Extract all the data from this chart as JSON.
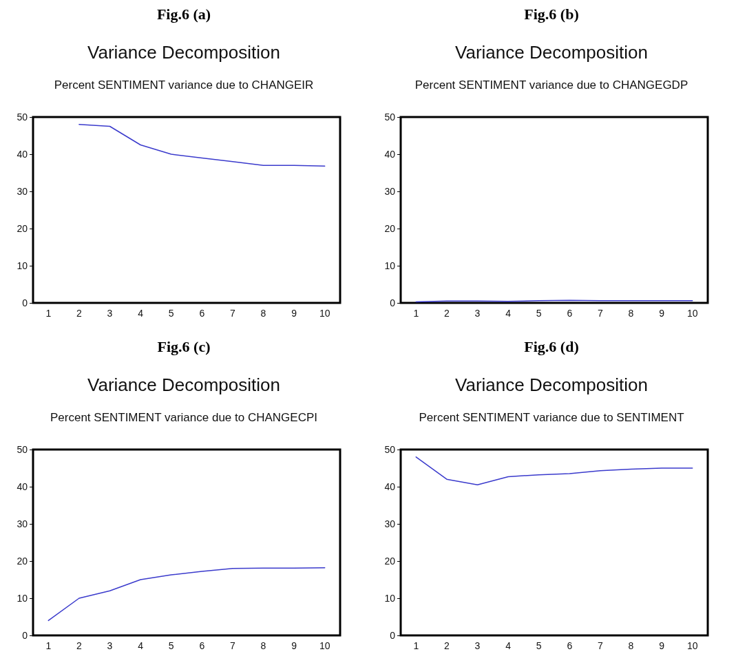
{
  "chart_data": [
    {
      "type": "line",
      "annotations": [
        "Fig.6 (a)"
      ],
      "title": "Variance Decomposition",
      "subtitle": "Percent SENTIMENT variance due to CHANGEIR",
      "categories": [
        "1",
        "2",
        "3",
        "4",
        "5",
        "6",
        "7",
        "8",
        "9",
        "10"
      ],
      "series": [
        {
          "color": "#3a3acc",
          "values": [
            null,
            48,
            47.5,
            42.5,
            40,
            39,
            38,
            37,
            37,
            36.8
          ]
        }
      ],
      "ylim": [
        0,
        50
      ],
      "yticks": [
        0,
        10,
        20,
        30,
        40,
        50
      ],
      "grid": false,
      "marker": "none",
      "line_style": "solid"
    },
    {
      "type": "line",
      "annotations": [
        "Fig.6 (b)"
      ],
      "title": "Variance Decomposition",
      "subtitle": "Percent SENTIMENT variance due to CHANGEGDP",
      "categories": [
        "1",
        "2",
        "3",
        "4",
        "5",
        "6",
        "7",
        "8",
        "9",
        "10"
      ],
      "series": [
        {
          "color": "#3a3acc",
          "values": [
            0.3,
            0.5,
            0.5,
            0.4,
            0.6,
            0.7,
            0.6,
            0.6,
            0.6,
            0.6
          ]
        }
      ],
      "ylim": [
        0,
        50
      ],
      "yticks": [
        0,
        10,
        20,
        30,
        40,
        50
      ],
      "grid": false,
      "marker": "none",
      "line_style": "solid"
    },
    {
      "type": "line",
      "annotations": [
        "Fig.6 (c)"
      ],
      "title": "Variance Decomposition",
      "subtitle": "Percent SENTIMENT variance due to CHANGECPI",
      "categories": [
        "1",
        "2",
        "3",
        "4",
        "5",
        "6",
        "7",
        "8",
        "9",
        "10"
      ],
      "series": [
        {
          "color": "#3a3acc",
          "values": [
            4,
            10,
            12,
            15,
            16.3,
            17.2,
            18,
            18.1,
            18.1,
            18.2
          ]
        }
      ],
      "ylim": [
        0,
        50
      ],
      "yticks": [
        0,
        10,
        20,
        30,
        40,
        50
      ],
      "grid": false,
      "marker": "none",
      "line_style": "solid"
    },
    {
      "type": "line",
      "annotations": [
        "Fig.6 (d)"
      ],
      "title": "Variance Decomposition",
      "subtitle": "Percent SENTIMENT variance due to SENTIMENT",
      "categories": [
        "1",
        "2",
        "3",
        "4",
        "5",
        "6",
        "7",
        "8",
        "9",
        "10"
      ],
      "series": [
        {
          "color": "#3a3acc",
          "values": [
            48,
            42,
            40.5,
            42.7,
            43.2,
            43.5,
            44.3,
            44.7,
            45,
            45
          ]
        }
      ],
      "ylim": [
        0,
        50
      ],
      "yticks": [
        0,
        10,
        20,
        30,
        40,
        50
      ],
      "grid": false,
      "marker": "none",
      "line_style": "solid"
    }
  ]
}
